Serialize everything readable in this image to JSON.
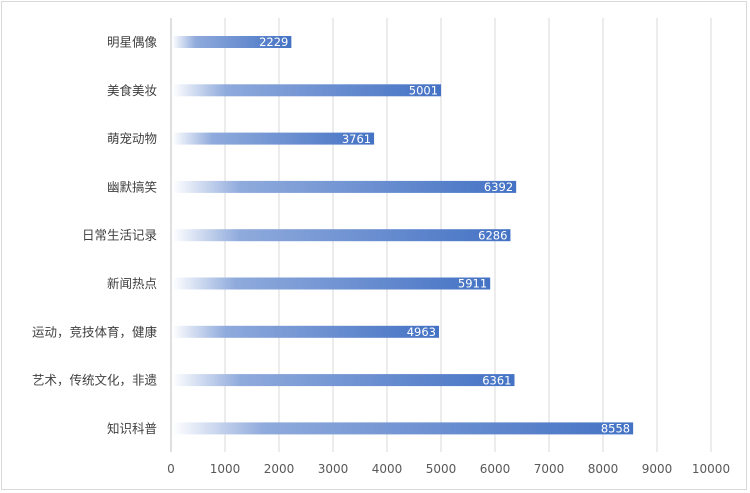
{
  "chart_data": {
    "type": "bar",
    "orientation": "horizontal",
    "title": "",
    "xlabel": "",
    "ylabel": "",
    "categories": [
      "明星偶像",
      "美食美妆",
      "萌宠动物",
      "幽默搞笑",
      "日常生活记录",
      "新闻热点",
      "运动，竞技体育，健康",
      "艺术，传统文化，非遗",
      "知识科普"
    ],
    "values": [
      2229,
      5001,
      3761,
      6392,
      6286,
      5911,
      4963,
      6361,
      8558
    ],
    "xlim": [
      0,
      10000
    ],
    "xticks": [
      0,
      1000,
      2000,
      3000,
      4000,
      5000,
      6000,
      7000,
      8000,
      9000,
      10000
    ],
    "grid": true,
    "legend": "none",
    "colors": {
      "bar_start": "#ffffff",
      "bar_end": "#4472c4",
      "grid": "#d9d9d9"
    }
  }
}
